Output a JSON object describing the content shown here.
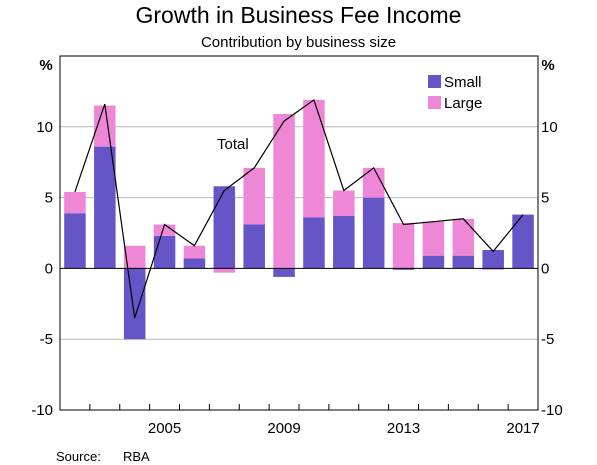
{
  "chart_data": {
    "type": "bar",
    "title": "Growth in Business Fee Income",
    "subtitle": "Contribution by business size",
    "ylabel_left": "%",
    "ylabel_right": "%",
    "ylim": [
      -10,
      15
    ],
    "yticks": [
      -10,
      -5,
      0,
      5,
      10
    ],
    "x": [
      2002,
      2003,
      2004,
      2005,
      2006,
      2007,
      2008,
      2009,
      2010,
      2011,
      2012,
      2013,
      2014,
      2015,
      2016,
      2017
    ],
    "xtick_labels": [
      "2005",
      "2009",
      "2013",
      "2017"
    ],
    "xtick_years": [
      2005,
      2009,
      2013,
      2017
    ],
    "series": [
      {
        "name": "Small",
        "color": "#6655c6",
        "values": [
          3.9,
          8.6,
          -5.0,
          2.3,
          0.7,
          5.8,
          3.1,
          -0.6,
          3.6,
          3.7,
          5.0,
          -0.1,
          0.9,
          0.9,
          1.3,
          3.8
        ]
      },
      {
        "name": "Large",
        "color": "#ee88d6",
        "values": [
          1.5,
          2.9,
          1.6,
          0.8,
          0.9,
          -0.3,
          4.0,
          10.9,
          8.3,
          1.8,
          2.1,
          3.2,
          2.4,
          2.6,
          -0.1,
          0.0
        ]
      }
    ],
    "total": {
      "label": "Total",
      "color": "#000000",
      "values": [
        5.4,
        11.6,
        -3.5,
        3.1,
        1.6,
        5.5,
        7.1,
        10.4,
        11.9,
        5.5,
        7.1,
        3.1,
        3.3,
        3.5,
        1.2,
        3.8
      ]
    },
    "legend_position": "top-right",
    "grid": true
  },
  "source_label": "Source:",
  "source_text": "RBA"
}
